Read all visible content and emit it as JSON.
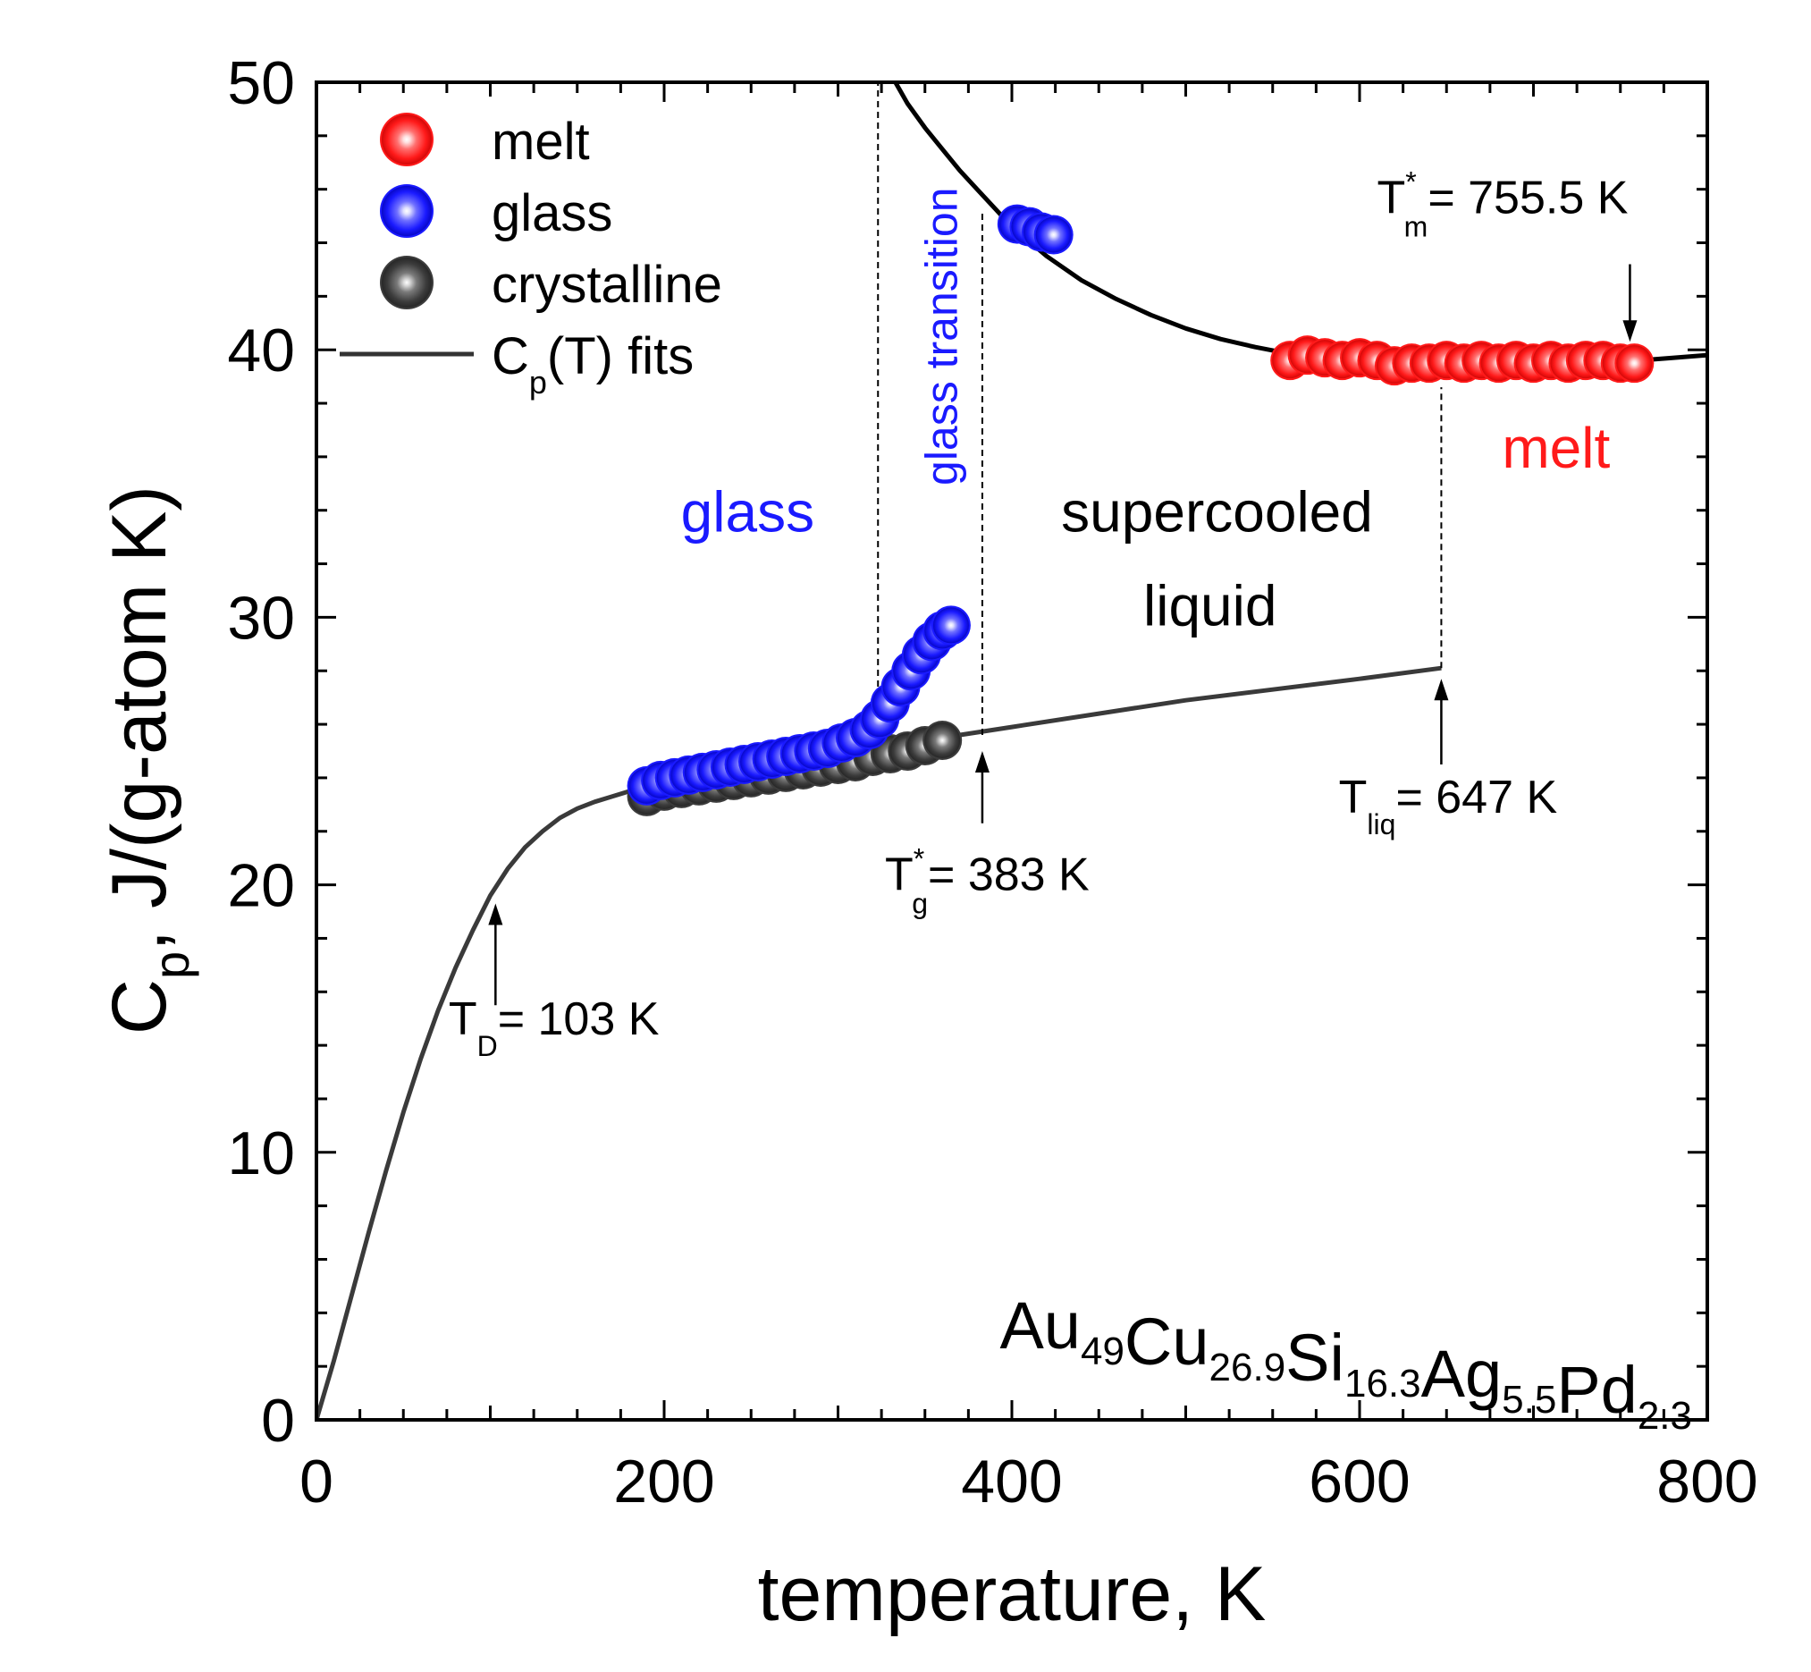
{
  "chart_data": {
    "type": "scatter",
    "title": "",
    "xlabel": "temperature, K",
    "ylabel": {
      "base": "C",
      "sub": "p",
      "rest": ",  J/(g-atom K)"
    },
    "xlim": [
      0,
      800
    ],
    "ylim": [
      0,
      50
    ],
    "x_ticks": [
      0,
      200,
      400,
      600,
      800
    ],
    "y_ticks": [
      0,
      10,
      20,
      30,
      40,
      50
    ],
    "grid": false,
    "legend": {
      "position": "top-left",
      "entries": [
        {
          "key": "melt",
          "label": "melt",
          "marker": "sphere",
          "color": "#ff1a1a"
        },
        {
          "key": "glass",
          "label": "glass",
          "marker": "sphere",
          "color": "#1a1aff"
        },
        {
          "key": "crystalline",
          "label": "crystalline",
          "marker": "sphere",
          "color": "#3c3c3c"
        },
        {
          "key": "fit",
          "label_base": "C",
          "label_sub": "p",
          "label_rest": "(T) fits",
          "marker": "line",
          "color": "#333333"
        }
      ]
    },
    "composition": {
      "parts": [
        {
          "el": "Au",
          "sub": "49"
        },
        {
          "el": "Cu",
          "sub": "26.9"
        },
        {
          "el": "Si",
          "sub": "16.3"
        },
        {
          "el": "Ag",
          "sub": "5.5"
        },
        {
          "el": "Pd",
          "sub": "2.3"
        }
      ]
    },
    "series": [
      {
        "name": "melt",
        "color": "#ff1a1a",
        "x": [
          560,
          570,
          580,
          590,
          600,
          610,
          620,
          630,
          640,
          650,
          660,
          670,
          680,
          690,
          700,
          710,
          720,
          730,
          740,
          750,
          758
        ],
        "y": [
          39.6,
          39.8,
          39.7,
          39.6,
          39.7,
          39.6,
          39.4,
          39.5,
          39.5,
          39.6,
          39.5,
          39.6,
          39.5,
          39.6,
          39.5,
          39.6,
          39.5,
          39.6,
          39.6,
          39.5,
          39.5
        ]
      },
      {
        "name": "glass",
        "color": "#1a1aff",
        "x": [
          190,
          198,
          206,
          214,
          222,
          230,
          238,
          246,
          254,
          262,
          270,
          278,
          286,
          294,
          302,
          310,
          318,
          324,
          330,
          336,
          342,
          348,
          354,
          360,
          365,
          403,
          410,
          417,
          424
        ],
        "y": [
          23.7,
          23.9,
          24.0,
          24.1,
          24.2,
          24.3,
          24.4,
          24.5,
          24.6,
          24.7,
          24.8,
          24.9,
          25.0,
          25.1,
          25.3,
          25.5,
          25.8,
          26.2,
          26.8,
          27.4,
          28.0,
          28.6,
          29.1,
          29.5,
          29.7,
          44.7,
          44.6,
          44.4,
          44.3
        ]
      },
      {
        "name": "crystalline",
        "color": "#3c3c3c",
        "x": [
          190,
          200,
          210,
          220,
          230,
          240,
          250,
          260,
          270,
          280,
          290,
          300,
          310,
          320,
          330,
          340,
          350,
          360
        ],
        "y": [
          23.3,
          23.5,
          23.6,
          23.7,
          23.8,
          23.9,
          24.0,
          24.1,
          24.2,
          24.3,
          24.4,
          24.5,
          24.6,
          24.8,
          24.9,
          25.0,
          25.2,
          25.4
        ]
      }
    ],
    "fits": [
      {
        "name": "crystal fit",
        "color": "#3a3a3a",
        "x": [
          0,
          10,
          20,
          30,
          40,
          50,
          60,
          70,
          80,
          90,
          100,
          110,
          120,
          130,
          140,
          150,
          160,
          170,
          180,
          190,
          200,
          250,
          300,
          350,
          400,
          450,
          500,
          550,
          600,
          647
        ],
        "y": [
          0,
          2.2,
          4.6,
          7.0,
          9.3,
          11.5,
          13.5,
          15.3,
          16.9,
          18.3,
          19.6,
          20.6,
          21.4,
          22.0,
          22.5,
          22.85,
          23.1,
          23.3,
          23.5,
          23.65,
          23.8,
          24.4,
          24.9,
          25.4,
          25.9,
          26.4,
          26.9,
          27.3,
          27.7,
          28.1
        ]
      },
      {
        "name": "liquid fit",
        "color": "#000000",
        "x": [
          333,
          340,
          350,
          360,
          370,
          380,
          390,
          400,
          420,
          440,
          460,
          480,
          500,
          520,
          540,
          560,
          580,
          600,
          620,
          640,
          660,
          680,
          700,
          720,
          740,
          760,
          780,
          800
        ],
        "y": [
          50.0,
          49.2,
          48.3,
          47.5,
          46.7,
          46.0,
          45.3,
          44.6,
          43.5,
          42.6,
          41.9,
          41.3,
          40.8,
          40.4,
          40.1,
          39.85,
          39.65,
          39.5,
          39.43,
          39.4,
          39.38,
          39.38,
          39.4,
          39.45,
          39.52,
          39.6,
          39.7,
          39.8
        ]
      }
    ],
    "annotations": {
      "regions": [
        {
          "key": "glass",
          "text": "glass",
          "color": "#1a1aff",
          "x": 248,
          "y": 33.2
        },
        {
          "key": "sc1",
          "text": "supercooled",
          "color": "#000000",
          "x": 518,
          "y": 33.2
        },
        {
          "key": "sc2",
          "text": "liquid",
          "color": "#000000",
          "x": 514,
          "y": 29.7
        },
        {
          "key": "melt",
          "text": "melt",
          "color": "#ff1a1a",
          "x": 713,
          "y": 35.6
        }
      ],
      "glass_transition": {
        "text": "glass transition",
        "color": "#1a1aff",
        "x": 357,
        "y": 40.5
      },
      "dashed_lines": [
        {
          "x": 323,
          "y0": 25.0,
          "y1": 50
        },
        {
          "x": 383,
          "y0": 25.6,
          "y1": 45.2
        },
        {
          "x": 647,
          "y0": 28.1,
          "y1": 38.6
        }
      ],
      "markers": [
        {
          "key": "TD",
          "base": "T",
          "sub": "D",
          "sup": "",
          "value": "= 103 K",
          "x": 103,
          "arrow_tail": 15.5,
          "arrow_head": 19.3,
          "text_x": 76,
          "text_y": 14.4
        },
        {
          "key": "Tg",
          "base": "T",
          "sub": "g",
          "sup": "*",
          "value": "= 383 K",
          "x": 383,
          "arrow_tail": 22.3,
          "arrow_head": 25.0,
          "text_x": 327,
          "text_y": 19.8
        },
        {
          "key": "Tliq",
          "base": "T",
          "sub": "liq",
          "sup": "",
          "value": "= 647 K",
          "x": 647,
          "arrow_tail": 24.5,
          "arrow_head": 27.7,
          "text_x": 588,
          "text_y": 22.7
        },
        {
          "key": "Tm",
          "base": "T",
          "sub": "m",
          "sup": "*",
          "value": "= 755.5 K",
          "x": 755.5,
          "arrow_tail": 43.2,
          "arrow_head": 40.3,
          "text_x": 610,
          "text_y": 45.1
        }
      ]
    }
  }
}
